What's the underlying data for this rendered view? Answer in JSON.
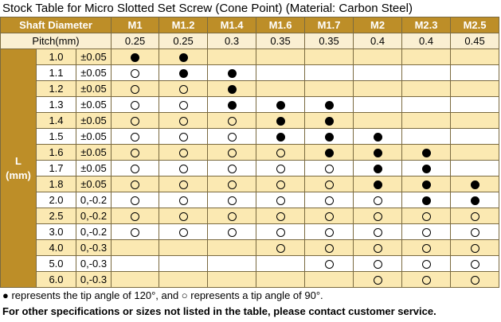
{
  "title": "Stock Table for Micro Slotted Set Screw (Cone Point) (Material: Carbon Steel)",
  "header": {
    "shaft_diameter_label": "Shaft Diameter",
    "sizes": [
      "M1",
      "M1.2",
      "M1.4",
      "M1.6",
      "M1.7",
      "M2",
      "M2.3",
      "M2.5"
    ]
  },
  "pitch": {
    "label": "Pitch(mm)",
    "values": [
      "0.25",
      "0.25",
      "0.3",
      "0.35",
      "0.35",
      "0.4",
      "0.4",
      "0.45"
    ]
  },
  "length": {
    "label_line1": "L",
    "label_line2": "(mm)"
  },
  "rows": [
    {
      "length": "1.0",
      "tolerance": "±0.05",
      "cells": [
        "filled",
        "filled",
        "",
        "",
        "",
        "",
        "",
        ""
      ]
    },
    {
      "length": "1.1",
      "tolerance": "±0.05",
      "cells": [
        "open",
        "filled",
        "filled",
        "",
        "",
        "",
        "",
        ""
      ]
    },
    {
      "length": "1.2",
      "tolerance": "±0.05",
      "cells": [
        "open",
        "open",
        "filled",
        "",
        "",
        "",
        "",
        ""
      ]
    },
    {
      "length": "1.3",
      "tolerance": "±0.05",
      "cells": [
        "open",
        "open",
        "filled",
        "filled",
        "filled",
        "",
        "",
        ""
      ]
    },
    {
      "length": "1.4",
      "tolerance": "±0.05",
      "cells": [
        "open",
        "open",
        "open",
        "filled",
        "filled",
        "",
        "",
        ""
      ]
    },
    {
      "length": "1.5",
      "tolerance": "±0.05",
      "cells": [
        "open",
        "open",
        "open",
        "filled",
        "filled",
        "filled",
        "",
        ""
      ]
    },
    {
      "length": "1.6",
      "tolerance": "±0.05",
      "cells": [
        "open",
        "open",
        "open",
        "open",
        "filled",
        "filled",
        "filled",
        ""
      ]
    },
    {
      "length": "1.7",
      "tolerance": "±0.05",
      "cells": [
        "open",
        "open",
        "open",
        "open",
        "open",
        "filled",
        "filled",
        ""
      ]
    },
    {
      "length": "1.8",
      "tolerance": "±0.05",
      "cells": [
        "open",
        "open",
        "open",
        "open",
        "open",
        "filled",
        "filled",
        "filled"
      ]
    },
    {
      "length": "2.0",
      "tolerance": "0,-0.2",
      "cells": [
        "open",
        "open",
        "open",
        "open",
        "open",
        "open",
        "filled",
        "filled"
      ]
    },
    {
      "length": "2.5",
      "tolerance": "0,-0.2",
      "cells": [
        "open",
        "open",
        "open",
        "open",
        "open",
        "open",
        "open",
        "open"
      ]
    },
    {
      "length": "3.0",
      "tolerance": "0,-0.2",
      "cells": [
        "open",
        "open",
        "open",
        "open",
        "open",
        "open",
        "open",
        "open"
      ]
    },
    {
      "length": "4.0",
      "tolerance": "0,-0.3",
      "cells": [
        "",
        "",
        "",
        "open",
        "open",
        "open",
        "open",
        "open"
      ]
    },
    {
      "length": "5.0",
      "tolerance": "0,-0.3",
      "cells": [
        "",
        "",
        "",
        "",
        "open",
        "open",
        "open",
        "open"
      ]
    },
    {
      "length": "6.0",
      "tolerance": "0,-0.3",
      "cells": [
        "",
        "",
        "",
        "",
        "",
        "open",
        "open",
        "open"
      ]
    }
  ],
  "legend_note": "● represents the tip angle of 120°, and ○ represents a tip angle of 90°.",
  "contact_note": "For other specifications or sizes not listed in the table, please contact customer service.",
  "colors": {
    "header_bg": "#bd8e28",
    "row_highlight": "#fbe9b2",
    "pitch_row": "#faefd2"
  }
}
